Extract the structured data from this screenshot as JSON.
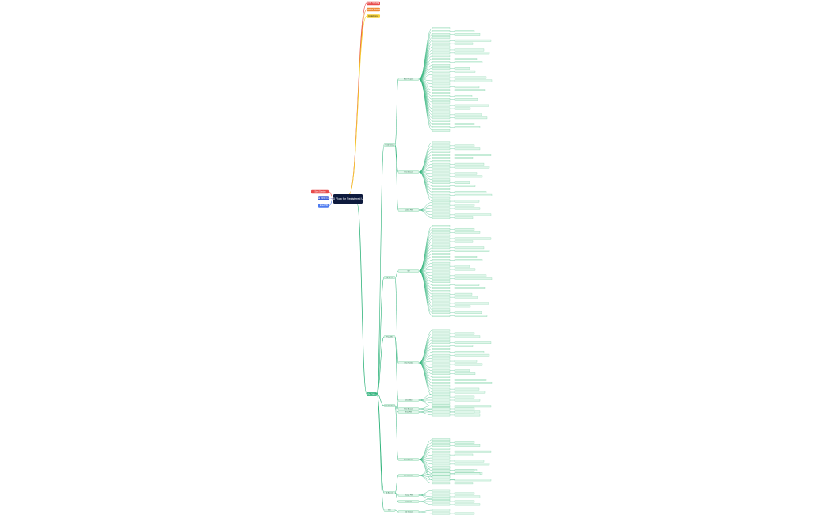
{
  "central": "USSD Flow for Registered Users",
  "left_nodes": [
    "Start Session",
    "Dial USSD Code",
    "Enter PIN"
  ],
  "top_nodes": [
    "Error Handling",
    "Session Timeout",
    "Invalid Input"
  ],
  "menu": {
    "label": "Main Menu",
    "branches": [
      {
        "label": "Send Money",
        "children": [
          "Enter Recipient",
          "Enter Amount",
          "Confirm PIN"
        ]
      },
      {
        "label": "Buy Airtime",
        "children": [
          "Self",
          "Other Number"
        ]
      },
      {
        "label": "Pay Bills",
        "children": [
          "Select Biller",
          "Enter Account"
        ]
      },
      {
        "label": "Check Balance",
        "children": [
          "Enter PIN",
          "Show Balance"
        ]
      },
      {
        "label": "My Account",
        "children": [
          "Mini Statement",
          "Change PIN",
          "Language"
        ]
      },
      {
        "label": "Exit",
        "children": [
          "End Session"
        ]
      }
    ]
  }
}
